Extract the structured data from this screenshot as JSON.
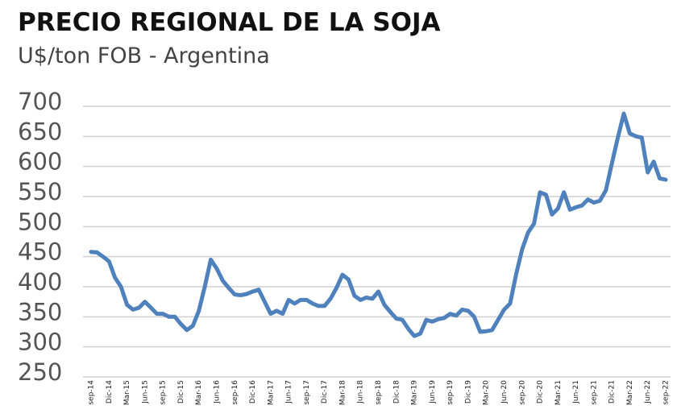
{
  "chart_data": {
    "type": "line",
    "title": "PRECIO REGIONAL DE LA SOJA",
    "subtitle": "U$/ton FOB - Argentina",
    "categories": [
      "sep-14",
      null,
      null,
      "Dic-14",
      null,
      null,
      "Mar-15",
      null,
      null,
      "Jun-15",
      null,
      null,
      "sep-15",
      null,
      null,
      "Dic-15",
      null,
      null,
      "Mar-16",
      null,
      null,
      "Jun-16",
      null,
      null,
      "sep-16",
      null,
      null,
      "Dic-16",
      null,
      null,
      "Mar-17",
      null,
      null,
      "Jun-17",
      null,
      null,
      "sep-17",
      null,
      null,
      "Dic-17",
      null,
      null,
      "Mar-18",
      null,
      null,
      "Jun-18",
      null,
      null,
      "sep-18",
      null,
      null,
      "Dic-18",
      null,
      null,
      "Mar-19",
      null,
      null,
      "Jun-19",
      null,
      null,
      "sep-19",
      null,
      null,
      "Dic-19",
      null,
      null,
      "Mar-20",
      null,
      null,
      "Jun-20",
      null,
      null,
      "sep-20",
      null,
      null,
      "Dic-20",
      null,
      null,
      "Mar-21",
      null,
      null,
      "Jun-21",
      null,
      null,
      "sep-21",
      null,
      null,
      "Dic-21",
      null,
      null,
      "Mar-22",
      null,
      null,
      "Jun-22",
      null,
      null,
      "sep-22"
    ],
    "values": [
      458,
      457,
      450,
      442,
      415,
      400,
      370,
      362,
      365,
      375,
      365,
      355,
      355,
      350,
      350,
      338,
      328,
      335,
      360,
      400,
      445,
      430,
      410,
      398,
      387,
      386,
      388,
      392,
      395,
      375,
      355,
      360,
      355,
      378,
      372,
      378,
      378,
      372,
      368,
      368,
      380,
      398,
      420,
      412,
      385,
      378,
      382,
      380,
      392,
      370,
      358,
      347,
      345,
      330,
      318,
      322,
      345,
      342,
      346,
      348,
      355,
      352,
      362,
      360,
      350,
      325,
      326,
      328,
      345,
      362,
      372,
      420,
      462,
      490,
      505,
      557,
      553,
      520,
      530,
      557,
      528,
      532,
      535,
      545,
      540,
      543,
      560,
      605,
      648,
      688,
      655,
      650,
      648,
      590,
      608,
      580,
      578
    ],
    "color": "#4f81bd",
    "ylim": [
      250,
      700
    ],
    "yticks": [
      250,
      300,
      350,
      400,
      450,
      500,
      550,
      600,
      650,
      700
    ],
    "grid": true
  }
}
